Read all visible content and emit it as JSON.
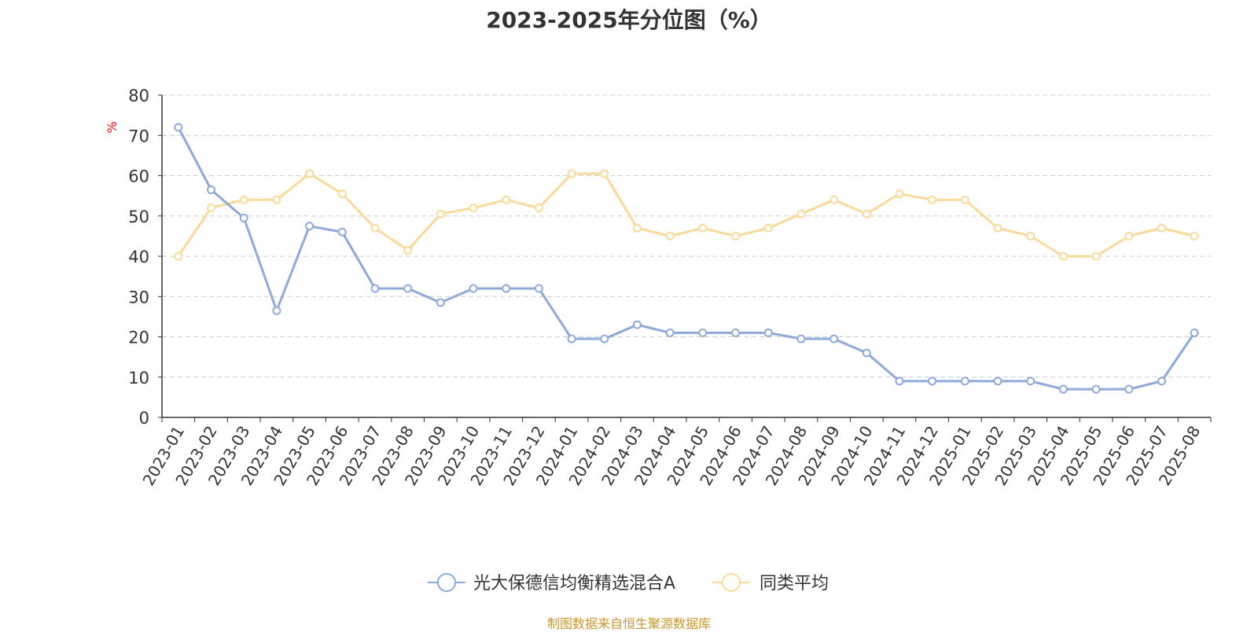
{
  "title": "2023-2025年分位图（%）",
  "source_note": "制图数据来自恒生聚源数据库",
  "colors": {
    "series_a": "#8eaadb",
    "series_b": "#fbd999",
    "ylabel": "#ff0000",
    "grid": "#cccccc",
    "axis": "#333333",
    "text": "#333333",
    "source": "#c8962a"
  },
  "chart_data": {
    "type": "line",
    "title": "2023-2025年分位图（%）",
    "xlabel": "",
    "ylabel": "%",
    "ylim": [
      0,
      80
    ],
    "yticks": [
      0,
      10,
      20,
      30,
      40,
      50,
      60,
      70,
      80
    ],
    "grid": true,
    "legend_position": "bottom-center",
    "categories": [
      "2023-01",
      "2023-02",
      "2023-03",
      "2023-04",
      "2023-05",
      "2023-06",
      "2023-07",
      "2023-08",
      "2023-09",
      "2023-10",
      "2023-11",
      "2023-12",
      "2024-01",
      "2024-02",
      "2024-03",
      "2024-04",
      "2024-05",
      "2024-06",
      "2024-07",
      "2024-08",
      "2024-09",
      "2024-10",
      "2024-11",
      "2024-12",
      "2025-01",
      "2025-02",
      "2025-03",
      "2025-04",
      "2025-05",
      "2025-06",
      "2025-07",
      "2025-08"
    ],
    "series": [
      {
        "name": "光大保德信均衡精选混合A",
        "values": [
          72,
          56.5,
          49.5,
          26.5,
          47.5,
          46,
          32,
          32,
          28.5,
          32,
          32,
          32,
          19.5,
          19.5,
          23,
          21,
          21,
          21,
          21,
          19.5,
          19.5,
          16,
          9,
          9,
          9,
          9,
          9,
          7,
          7,
          7,
          9,
          21
        ]
      },
      {
        "name": "同类平均",
        "values": [
          40,
          52,
          54,
          54,
          60.5,
          55.5,
          47,
          41.5,
          50.5,
          52,
          54,
          52,
          60.5,
          60.5,
          47,
          45,
          47,
          45,
          47,
          50.5,
          54,
          50.5,
          55.5,
          54,
          54,
          47,
          45,
          40,
          40,
          45,
          47,
          45
        ]
      }
    ]
  }
}
